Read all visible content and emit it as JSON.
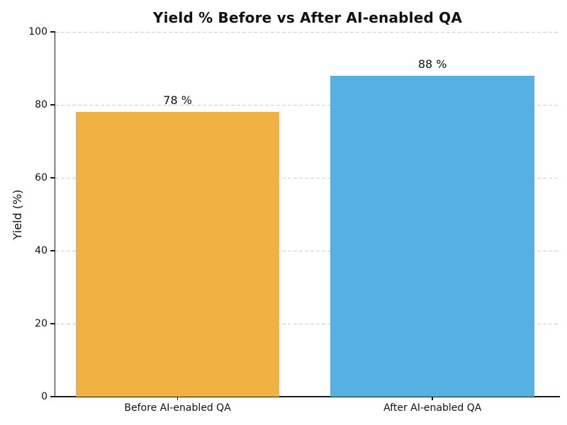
{
  "chart_data": {
    "type": "bar",
    "title": "Yield % Before vs After AI-enabled QA",
    "ylabel": "Yield (%)",
    "xlabel": "",
    "categories": [
      "Before AI-enabled QA",
      "After AI-enabled QA"
    ],
    "values": [
      78,
      88
    ],
    "bar_value_labels": [
      "78 %",
      "88 %"
    ],
    "bar_colors": [
      "#F2B143",
      "#55B1E1"
    ],
    "ylim": [
      0,
      100
    ],
    "yticks": [
      0,
      20,
      40,
      60,
      80,
      100
    ],
    "grid": {
      "axis": "y",
      "style": "dashed",
      "color": "#CCCCCC"
    },
    "legend_position": "none",
    "background": "#FFFFFF",
    "text_color": "#111111"
  }
}
